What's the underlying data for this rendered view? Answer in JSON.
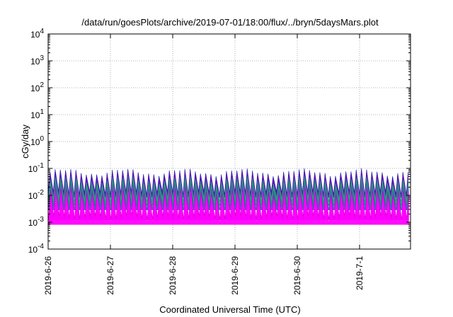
{
  "chart_data": {
    "type": "area",
    "title": "/data/run/goesPlots/archive/2019-07-01/18:00/flux/../bryn/5daysMars.plot",
    "xlabel": "Coordinated Universal Time (UTC)",
    "ylabel": "cGy/day",
    "y_scale": "log",
    "ylim": [
      0.0001,
      10000
    ],
    "xlim_days": [
      "2019-6-26",
      "2019-7-1 19:00"
    ],
    "y_ticks": [
      {
        "base": "10",
        "exp": "-4"
      },
      {
        "base": "10",
        "exp": "-3"
      },
      {
        "base": "10",
        "exp": "-2"
      },
      {
        "base": "10",
        "exp": "-1"
      },
      {
        "base": "10",
        "exp": "0"
      },
      {
        "base": "10",
        "exp": "1"
      },
      {
        "base": "10",
        "exp": "2"
      },
      {
        "base": "10",
        "exp": "3"
      },
      {
        "base": "10",
        "exp": "4"
      }
    ],
    "x_ticks": [
      "2019-6-26",
      "2019-6-27",
      "2019-6-28",
      "2019-6-29",
      "2019-6-30",
      "2019-7-1"
    ],
    "grid": true,
    "cycles_per_day": 12,
    "series": [
      {
        "color": "#1f1fb4",
        "peak": 0.075,
        "trough": 0.012
      },
      {
        "color": "#6a0dad",
        "peak": 0.06,
        "trough": 0.01
      },
      {
        "color": "#1f9e9e",
        "peak": 0.04,
        "trough": 0.007
      },
      {
        "color": "#2aa04a",
        "peak": 0.03,
        "trough": 0.005
      },
      {
        "color": "#3b5fc0",
        "peak": 0.022,
        "trough": 0.0035
      },
      {
        "color": "#cc00cc",
        "peak": 0.015,
        "trough": 0.0015
      },
      {
        "color": "#ff00ff",
        "peak": 0.011,
        "trough": 0.001
      }
    ]
  }
}
